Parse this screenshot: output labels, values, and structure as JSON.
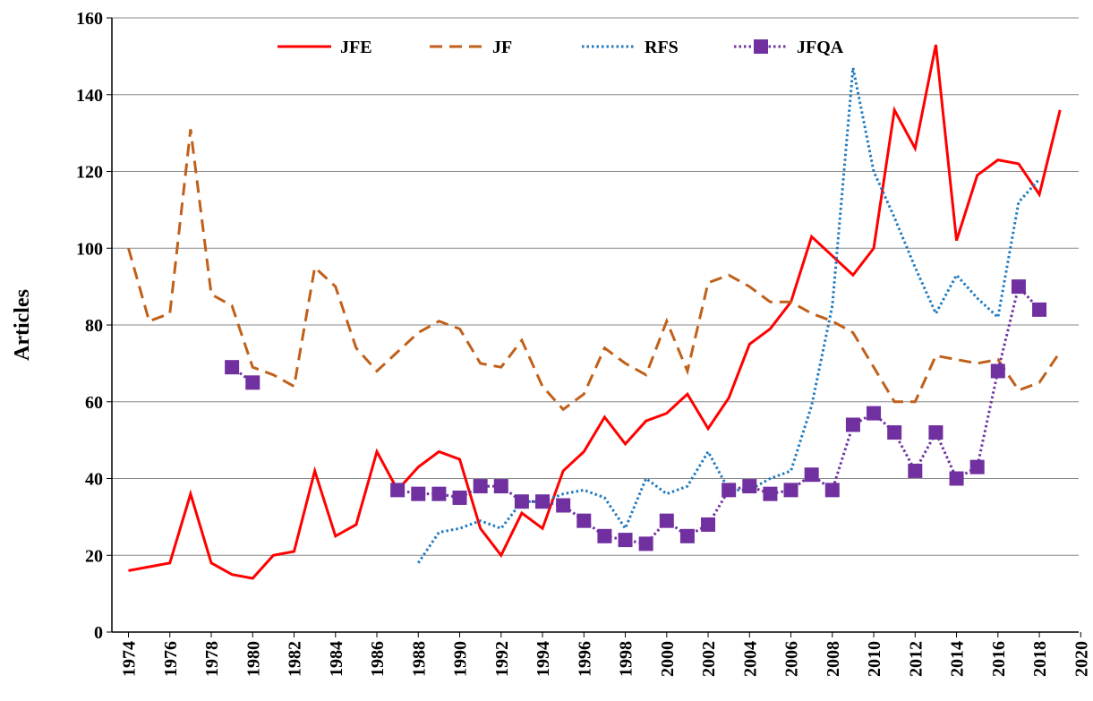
{
  "chart_data": {
    "type": "line",
    "ylabel": "Articles",
    "x": [
      1974,
      1975,
      1976,
      1977,
      1978,
      1979,
      1980,
      1981,
      1982,
      1983,
      1984,
      1985,
      1986,
      1987,
      1988,
      1989,
      1990,
      1991,
      1992,
      1993,
      1994,
      1995,
      1996,
      1997,
      1998,
      1999,
      2000,
      2001,
      2002,
      2003,
      2004,
      2005,
      2006,
      2007,
      2008,
      2009,
      2010,
      2011,
      2012,
      2013,
      2014,
      2015,
      2016,
      2017,
      2018,
      2019
    ],
    "series": [
      {
        "name": "JFE",
        "color": "#ff0000",
        "dash": "solid",
        "marker": false,
        "values": [
          16,
          17,
          18,
          36,
          18,
          15,
          14,
          20,
          21,
          42,
          25,
          28,
          47,
          37,
          43,
          47,
          45,
          27,
          20,
          31,
          27,
          42,
          47,
          56,
          49,
          55,
          57,
          62,
          53,
          61,
          75,
          79,
          86,
          103,
          98,
          93,
          100,
          136,
          126,
          153,
          102,
          119,
          123,
          122,
          114,
          136
        ]
      },
      {
        "name": "JF",
        "color": "#c0601a",
        "dash": "dashed",
        "marker": false,
        "values": [
          100,
          81,
          83,
          131,
          88,
          85,
          69,
          67,
          64,
          95,
          90,
          74,
          68,
          73,
          78,
          81,
          79,
          70,
          69,
          76,
          64,
          58,
          62,
          74,
          70,
          67,
          81,
          68,
          91,
          93,
          90,
          86,
          86,
          83,
          81,
          78,
          69,
          60,
          60,
          72,
          71,
          70,
          71,
          63,
          65,
          73
        ]
      },
      {
        "name": "RFS",
        "color": "#1f7ac0",
        "dash": "dotted",
        "marker": false,
        "values": [
          null,
          null,
          null,
          null,
          null,
          null,
          null,
          null,
          null,
          null,
          null,
          null,
          null,
          null,
          18,
          26,
          27,
          29,
          27,
          34,
          34,
          36,
          37,
          35,
          27,
          40,
          36,
          38,
          47,
          37,
          37,
          40,
          42,
          59,
          85,
          147,
          120,
          108,
          95,
          83,
          93,
          87,
          82,
          112,
          118,
          null
        ]
      },
      {
        "name": "JFQA",
        "color": "#7030a0",
        "dash": "dotted",
        "marker": true,
        "values": [
          null,
          null,
          null,
          null,
          null,
          69,
          65,
          null,
          null,
          null,
          null,
          null,
          null,
          37,
          36,
          36,
          35,
          38,
          38,
          34,
          34,
          33,
          29,
          25,
          24,
          23,
          29,
          25,
          28,
          37,
          38,
          36,
          37,
          41,
          37,
          54,
          57,
          52,
          42,
          52,
          40,
          43,
          68,
          90,
          84,
          null
        ]
      }
    ],
    "xlim": [
      1973.2,
      2019.9
    ],
    "xticks": [
      1974,
      1976,
      1978,
      1980,
      1982,
      1984,
      1986,
      1988,
      1990,
      1992,
      1994,
      1996,
      1998,
      2000,
      2002,
      2004,
      2006,
      2008,
      2010,
      2012,
      2014,
      2016,
      2018,
      2020
    ],
    "ylim": [
      0,
      160
    ],
    "yticks": [
      0,
      20,
      40,
      60,
      80,
      100,
      120,
      140,
      160
    ],
    "grid": true,
    "legend": "top"
  }
}
